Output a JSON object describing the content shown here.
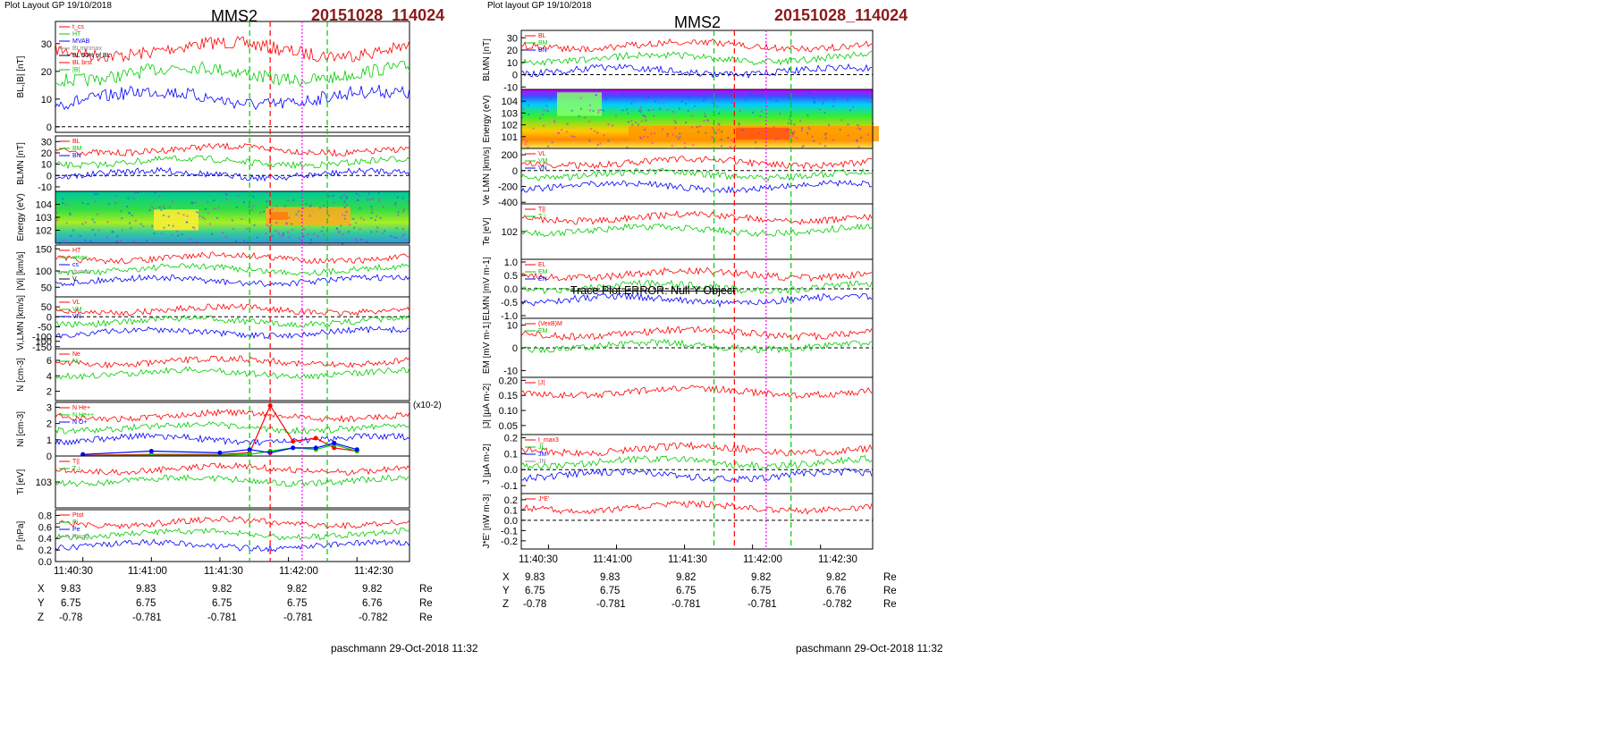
{
  "left": {
    "layout_label": "Plot Layout GP 19/10/2018",
    "spacecraft": "MMS2",
    "event_id": "20151028_114024",
    "footer": "paschmann 29-Oct-2018 11:32",
    "coords": {
      "times": [
        "11:40:30",
        "11:41:00",
        "11:41:30",
        "11:42:00",
        "11:42:30"
      ],
      "rows": [
        {
          "label": "X",
          "values": [
            "9.83",
            "9.83",
            "9.82",
            "9.82",
            "9.82"
          ],
          "unit": "Re"
        },
        {
          "label": "Y",
          "values": [
            "6.75",
            "6.75",
            "6.75",
            "6.75",
            "6.76"
          ],
          "unit": "Re"
        },
        {
          "label": "Z",
          "values": [
            "-0.78",
            "-0.781",
            "-0.781",
            "-0.781",
            "-0.782"
          ],
          "unit": "Re"
        }
      ]
    }
  },
  "right": {
    "layout_label": "Plot layout GP 19/10/2018",
    "spacecraft": "MMS2",
    "event_id": "20151028_114024",
    "footer": "paschmann 29-Oct-2018 11:32",
    "error_text": "Trace Plot ERROR: Null Y Object",
    "coords": {
      "times": [
        "11:40:30",
        "11:41:00",
        "11:41:30",
        "11:42:00",
        "11:42:30"
      ],
      "rows": [
        {
          "label": "X",
          "values": [
            "9.83",
            "9.83",
            "9.82",
            "9.82",
            "9.82"
          ],
          "unit": "Re"
        },
        {
          "label": "Y",
          "values": [
            "6.75",
            "6.75",
            "6.75",
            "6.75",
            "6.76"
          ],
          "unit": "Re"
        },
        {
          "label": "Z",
          "values": [
            "-0.78",
            "-0.781",
            "-0.781",
            "-0.781",
            "-0.782"
          ],
          "unit": "Re"
        }
      ]
    }
  },
  "colors": {
    "red": "#ff0000",
    "green": "#00cc00",
    "blue": "#0000ff",
    "black": "#000000",
    "magenta": "#ff00ff",
    "gray": "#888888",
    "title_red": "#8B1A1A"
  },
  "chart_data": [
    {
      "type": "line",
      "title": "MMS2",
      "x_range": [
        "11:40:18",
        "11:42:53"
      ],
      "event_lines": [
        {
          "time": "11:41:43",
          "style": "green dashed"
        },
        {
          "time": "11:41:52",
          "style": "red dashed"
        },
        {
          "time": "11:42:06",
          "style": "magenta dotted"
        },
        {
          "time": "11:42:17",
          "style": "green dashed"
        }
      ],
      "panels": [
        {
          "ylabel": "BL,|B| [nT]",
          "ylim": [
            -2,
            38
          ],
          "yticks": [
            "0",
            "10",
            "20",
            "30"
          ],
          "legend": [
            "t_cs",
            "HT",
            "MVAB",
            "BLminmax",
            "BL 50% of BL",
            "BL brst",
            "|B|"
          ]
        },
        {
          "ylabel": "BLMN [nT]",
          "ylim": [
            -14,
            35
          ],
          "yticks": [
            "-10",
            "0",
            "10",
            "20",
            "30"
          ],
          "legend": [
            "BL",
            "BM",
            "BN"
          ]
        },
        {
          "ylabel": "Energy (eV)",
          "type": "heatmap",
          "yticks": [
            "102",
            "103",
            "104"
          ]
        },
        {
          "ylabel": "|Vi| [km/s]",
          "ylim": [
            25,
            160
          ],
          "yticks": [
            "50",
            "100",
            "150"
          ],
          "legend": [
            "HT",
            "vmax",
            "cs",
            "dvmax",
            "V"
          ]
        },
        {
          "ylabel": "Vi,LMN [km/s]",
          "ylim": [
            -160,
            100
          ],
          "yticks": [
            "100",
            "50",
            "0",
            "-50",
            "-100",
            "-150"
          ],
          "legend": [
            "VL",
            "VM",
            "VN"
          ]
        },
        {
          "ylabel": "N [cm-3]",
          "ylim": [
            0.8,
            7.5
          ],
          "yticks": [
            "2",
            "4",
            "6"
          ],
          "legend": [
            "Ne",
            "Ni"
          ]
        },
        {
          "ylabel": "Ni [cm-3]",
          "scale_note": "(x10-2)",
          "ylim": [
            0,
            3.3
          ],
          "yticks": [
            "0",
            "1",
            "2",
            "3"
          ],
          "legend": [
            "N He+",
            "N He++",
            "N O+"
          ],
          "series": [
            {
              "name": "N He++",
              "x": [
                "11:40:30",
                "11:41:00",
                "11:41:30",
                "11:41:43",
                "11:41:52",
                "11:42:02",
                "11:42:12",
                "11:42:20",
                "11:42:30"
              ],
              "values": [
                0.05,
                0.1,
                0.1,
                0.2,
                3.1,
                0.9,
                1.1,
                0.5,
                0.3
              ]
            },
            {
              "name": "N He+",
              "x": [
                "11:40:30",
                "11:41:00",
                "11:41:30",
                "11:41:43",
                "11:41:52",
                "11:42:02",
                "11:42:12",
                "11:42:20",
                "11:42:30"
              ],
              "values": [
                0.02,
                0.05,
                0.05,
                0.1,
                0.3,
                0.5,
                0.4,
                0.7,
                0.3
              ]
            },
            {
              "name": "N O+",
              "x": [
                "11:40:30",
                "11:41:00",
                "11:41:30",
                "11:41:43",
                "11:41:52",
                "11:42:02",
                "11:42:12",
                "11:42:20",
                "11:42:30"
              ],
              "values": [
                0.1,
                0.3,
                0.2,
                0.4,
                0.2,
                0.5,
                0.5,
                0.8,
                0.4
              ]
            }
          ]
        },
        {
          "ylabel": "Ti [eV]",
          "yticks": [
            "103"
          ],
          "legend": [
            "T||",
            "T⊥"
          ]
        },
        {
          "ylabel": "P [nPa]",
          "ylim": [
            0,
            0.9
          ],
          "yticks": [
            "0.0",
            "0.2",
            "0.4",
            "0.6",
            "0.8"
          ],
          "legend": [
            "Ptot",
            "Pi",
            "Pe",
            "Pmag"
          ]
        }
      ]
    },
    {
      "type": "line",
      "title": "MMS2",
      "x_range": [
        "11:40:18",
        "11:42:53"
      ],
      "event_lines": [
        {
          "time": "11:41:43",
          "style": "green dashed"
        },
        {
          "time": "11:41:52",
          "style": "red dashed"
        },
        {
          "time": "11:42:06",
          "style": "magenta dotted"
        },
        {
          "time": "11:42:17",
          "style": "green dashed"
        }
      ],
      "panels": [
        {
          "ylabel": "BLMN [nT]",
          "ylim": [
            -12,
            36
          ],
          "yticks": [
            "-10",
            "0",
            "10",
            "20",
            "30"
          ],
          "legend": [
            "BL",
            "BM",
            "BN"
          ]
        },
        {
          "ylabel": "Energy (eV)",
          "type": "heatmap",
          "yticks": [
            "101",
            "102",
            "103",
            "104"
          ]
        },
        {
          "ylabel": "Ve LMN [km/s]",
          "ylim": [
            -420,
            280
          ],
          "yticks": [
            "200",
            "0",
            "-200",
            "-400"
          ],
          "legend": [
            "VL",
            "VM",
            "VN"
          ]
        },
        {
          "ylabel": "Te [eV]",
          "yticks": [
            "102"
          ],
          "legend": [
            "T||",
            "T⊥"
          ]
        },
        {
          "ylabel": "ELMN [mV m-1]",
          "ylim": [
            -1.1,
            1.1
          ],
          "yticks": [
            "1.0",
            "0.5",
            "0.0",
            "-0.5",
            "-1.0"
          ],
          "legend": [
            "EL",
            "EM",
            "EN"
          ]
        },
        {
          "ylabel": "EM [mV m-1]",
          "ylim": [
            -13,
            13
          ],
          "yticks": [
            "10",
            "0",
            "-10"
          ],
          "legend": [
            "(VexB)M",
            "EM"
          ]
        },
        {
          "ylabel": "|J| [µA m-2]",
          "ylim": [
            0.02,
            0.21
          ],
          "yticks": [
            "0.05",
            "0.10",
            "0.15",
            "0.20"
          ],
          "legend": [
            "|J|"
          ]
        },
        {
          "ylabel": "J [µA m-2]",
          "ylim": [
            -0.15,
            0.22
          ],
          "yticks": [
            "0.2",
            "0.1",
            "0.0",
            "-0.1"
          ],
          "legend": [
            "t_max3",
            "JL",
            "JM",
            "JN"
          ]
        },
        {
          "ylabel": "J*E' [nW m-3]",
          "ylim": [
            -0.28,
            0.26
          ],
          "yticks": [
            "0.2",
            "0.1",
            "0.0",
            "-0.1",
            "-0.2"
          ],
          "legend": [
            "J*E'"
          ]
        }
      ]
    }
  ]
}
